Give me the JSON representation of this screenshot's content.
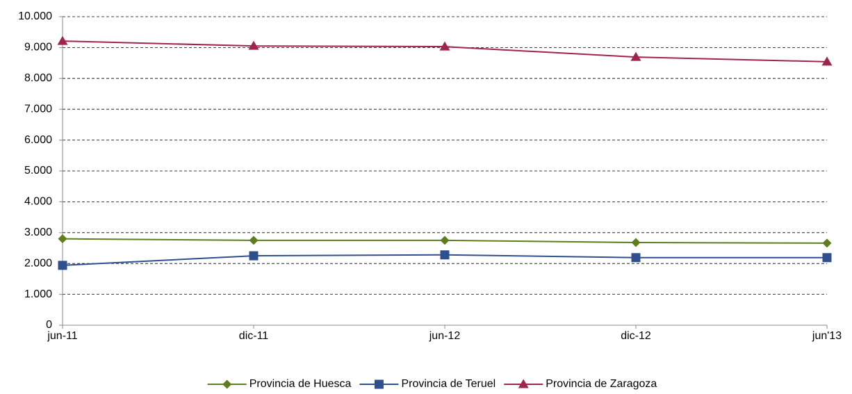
{
  "chart_data": {
    "type": "line",
    "categories": [
      "jun-11",
      "dic-11",
      "jun-12",
      "dic-12",
      "jun'13"
    ],
    "series": [
      {
        "name": "Provincia de Huesca",
        "color": "#5f7d1e",
        "marker": "diamond",
        "values": [
          2800,
          2750,
          2750,
          2680,
          2660
        ]
      },
      {
        "name": "Provincia de Teruel",
        "color": "#2f4f8f",
        "marker": "square",
        "values": [
          1940,
          2250,
          2280,
          2190,
          2190
        ]
      },
      {
        "name": "Provincia de Zaragoza",
        "color": "#a3244b",
        "marker": "triangle",
        "values": [
          9210,
          9050,
          9030,
          8690,
          8540
        ]
      }
    ],
    "ylim": [
      0,
      10000
    ],
    "yticks": [
      0,
      {
        "value": 1000,
        "label": "1.000"
      },
      {
        "value": 2000,
        "label": "2.000"
      },
      {
        "value": 3000,
        "label": "3.000"
      },
      {
        "value": 4000,
        "label": "4.000"
      },
      {
        "value": 5000,
        "label": "5.000"
      },
      {
        "value": 6000,
        "label": "6.000"
      },
      {
        "value": 7000,
        "label": "7.000"
      },
      {
        "value": 8000,
        "label": "8.000"
      },
      {
        "value": 9000,
        "label": "9.000"
      },
      {
        "value": 10000,
        "label": "10.000"
      }
    ],
    "grid": true,
    "legend": "bottom"
  }
}
